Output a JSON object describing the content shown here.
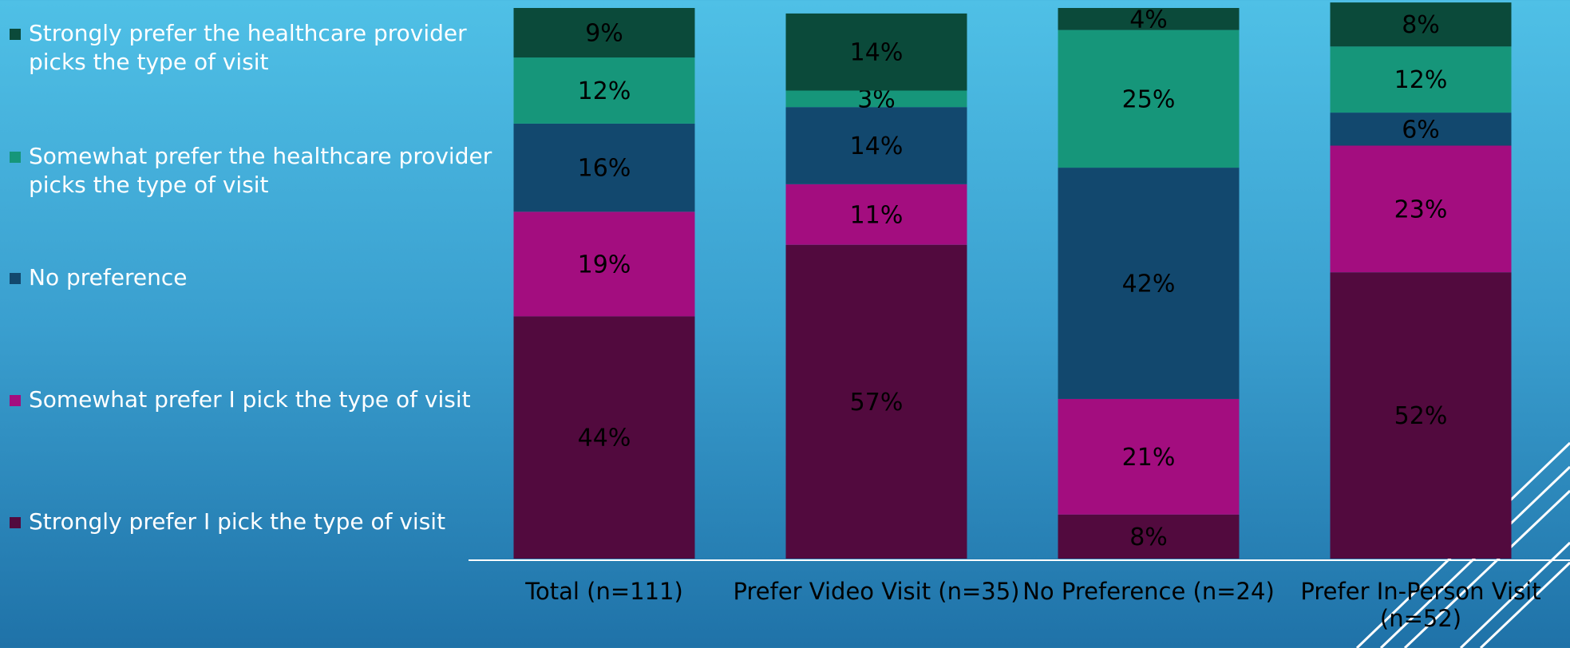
{
  "chart_data": {
    "type": "stacked_bar",
    "categories": [
      "Total (n=111)",
      "Prefer Video Visit (n=35)",
      "No Preference (n=24)",
      "Prefer In-Person Visit (n=52)"
    ],
    "series": [
      {
        "name": "Strongly prefer I pick the type of visit",
        "color": "#520a3e",
        "values": [
          44,
          57,
          8,
          52
        ],
        "value_labels": [
          "44%",
          "57%",
          "8%",
          "52%"
        ]
      },
      {
        "name": "Somewhat prefer I pick the type of visit",
        "color": "#a30d7f",
        "values": [
          19,
          11,
          21,
          23
        ],
        "value_labels": [
          "19%",
          "11%",
          "21%",
          "23%"
        ]
      },
      {
        "name": "No preference",
        "color": "#12486e",
        "values": [
          16,
          14,
          42,
          6
        ],
        "value_labels": [
          "16%",
          "14%",
          "42%",
          "6%"
        ]
      },
      {
        "name": "Somewhat prefer the healthcare provider picks the type of visit",
        "color": "#16967a",
        "values": [
          12,
          3,
          25,
          12
        ],
        "value_labels": [
          "12%",
          "3%",
          "25%",
          "12%"
        ]
      },
      {
        "name": "Strongly prefer the healthcare provider picks the type of visit",
        "color": "#0b4a3a",
        "values": [
          9,
          14,
          4,
          8
        ],
        "value_labels": [
          "9%",
          "14%",
          "4%",
          "8%"
        ]
      }
    ],
    "ylim": [
      0,
      100
    ]
  }
}
